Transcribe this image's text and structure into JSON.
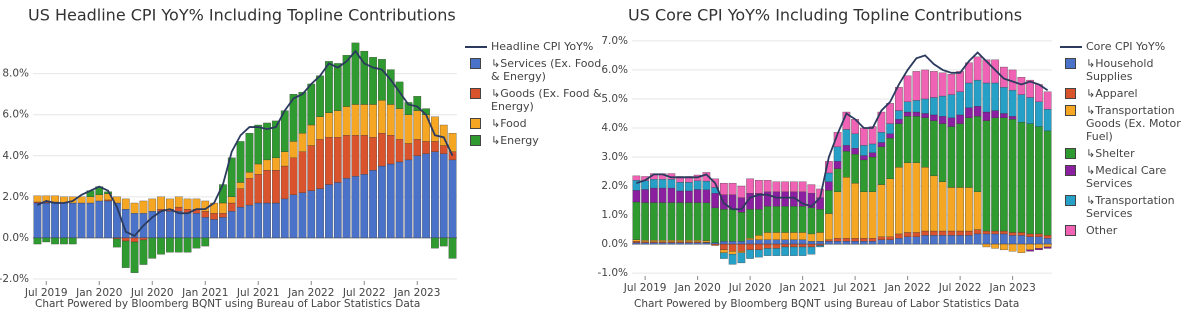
{
  "chart_data": [
    {
      "type": "bar",
      "stacked": true,
      "grid": true,
      "title": "US Headline CPI YoY% Including Topline Contributions",
      "note": "Chart Powered by Bloomberg BQNT using Bureau of Labor Statistics Data",
      "x": [
        "2019-06",
        "2019-07",
        "2019-08",
        "2019-09",
        "2019-10",
        "2019-11",
        "2019-12",
        "2020-01",
        "2020-02",
        "2020-03",
        "2020-04",
        "2020-05",
        "2020-06",
        "2020-07",
        "2020-08",
        "2020-09",
        "2020-10",
        "2020-11",
        "2020-12",
        "2021-01",
        "2021-02",
        "2021-03",
        "2021-04",
        "2021-05",
        "2021-06",
        "2021-07",
        "2021-08",
        "2021-09",
        "2021-10",
        "2021-11",
        "2021-12",
        "2022-01",
        "2022-02",
        "2022-03",
        "2022-04",
        "2022-05",
        "2022-06",
        "2022-07",
        "2022-08",
        "2022-09",
        "2022-10",
        "2022-11",
        "2022-12",
        "2023-01",
        "2023-02",
        "2023-03",
        "2023-04",
        "2023-05"
      ],
      "xticks": [
        {
          "value": "2019-07",
          "label": "Jul 2019"
        },
        {
          "value": "2020-01",
          "label": "Jan 2020"
        },
        {
          "value": "2020-07",
          "label": "Jul 2020"
        },
        {
          "value": "2021-01",
          "label": "Jan 2021"
        },
        {
          "value": "2021-07",
          "label": "Jul 2021"
        },
        {
          "value": "2022-01",
          "label": "Jan 2022"
        },
        {
          "value": "2022-07",
          "label": "Jul 2022"
        },
        {
          "value": "2023-01",
          "label": "Jan 2023"
        }
      ],
      "ylim": [
        -2.1,
        9.3
      ],
      "yticks": [
        {
          "value": -2,
          "label": "-2.0%"
        },
        {
          "value": 0,
          "label": "0.0%"
        },
        {
          "value": 2,
          "label": "2.0%"
        },
        {
          "value": 4,
          "label": "4.0%"
        },
        {
          "value": 6,
          "label": "6.0%"
        },
        {
          "value": 8,
          "label": "8.0%"
        }
      ],
      "series": [
        {
          "name": "Headline CPI YoY%",
          "type": "line",
          "color": "#2b3a5e",
          "values": [
            1.6,
            1.8,
            1.7,
            1.7,
            1.8,
            2.1,
            2.3,
            2.5,
            2.3,
            1.5,
            0.3,
            0.1,
            0.6,
            1.0,
            1.3,
            1.4,
            1.2,
            1.2,
            1.4,
            1.4,
            1.7,
            2.6,
            4.2,
            5.0,
            5.4,
            5.4,
            5.3,
            5.4,
            6.2,
            6.8,
            7.0,
            7.5,
            7.9,
            8.5,
            8.3,
            8.6,
            9.1,
            8.5,
            8.3,
            8.2,
            7.7,
            7.1,
            6.5,
            6.4,
            6.0,
            5.0,
            4.9,
            4.0
          ]
        },
        {
          "name": "↳Services (Ex. Food & Energy)",
          "color": "#4a72c8",
          "values": [
            1.7,
            1.7,
            1.7,
            1.7,
            1.7,
            1.7,
            1.7,
            1.8,
            1.8,
            1.7,
            1.4,
            1.2,
            1.2,
            1.3,
            1.3,
            1.3,
            1.3,
            1.2,
            1.2,
            1.0,
            0.9,
            1.0,
            1.3,
            1.5,
            1.6,
            1.7,
            1.7,
            1.7,
            1.9,
            2.1,
            2.2,
            2.3,
            2.4,
            2.6,
            2.7,
            2.9,
            3.0,
            3.1,
            3.3,
            3.5,
            3.6,
            3.7,
            3.8,
            4.0,
            4.1,
            4.2,
            4.1,
            3.8
          ]
        },
        {
          "name": "↳Goods (Ex. Food & Energy)",
          "color": "#d9532c",
          "values": [
            0.05,
            0.05,
            0.05,
            0.0,
            0.0,
            0.0,
            0.0,
            0.0,
            0.05,
            -0.05,
            -0.15,
            -0.2,
            -0.1,
            0.0,
            0.1,
            0.1,
            0.2,
            0.2,
            0.2,
            0.3,
            0.3,
            0.2,
            0.4,
            0.9,
            1.3,
            1.4,
            1.6,
            1.6,
            1.6,
            1.8,
            2.0,
            2.2,
            2.4,
            2.3,
            2.2,
            2.1,
            2.0,
            1.9,
            1.6,
            1.6,
            1.4,
            1.1,
            0.8,
            0.8,
            0.6,
            0.5,
            0.4,
            0.4
          ]
        },
        {
          "name": "↳Food",
          "color": "#f5a623",
          "values": [
            0.3,
            0.3,
            0.3,
            0.3,
            0.3,
            0.3,
            0.3,
            0.3,
            0.3,
            0.3,
            0.5,
            0.5,
            0.6,
            0.6,
            0.6,
            0.5,
            0.5,
            0.5,
            0.5,
            0.5,
            0.5,
            0.5,
            0.3,
            0.3,
            0.3,
            0.5,
            0.5,
            0.6,
            0.7,
            0.8,
            0.9,
            1.0,
            1.1,
            1.2,
            1.3,
            1.4,
            1.5,
            1.5,
            1.6,
            1.6,
            1.5,
            1.5,
            1.4,
            1.4,
            1.3,
            1.2,
            1.0,
            0.9
          ]
        },
        {
          "name": "↳Energy",
          "color": "#2f9a2f",
          "values": [
            -0.3,
            -0.2,
            -0.3,
            -0.3,
            -0.3,
            0.0,
            0.3,
            0.4,
            0.1,
            -0.4,
            -1.3,
            -1.5,
            -1.2,
            -1.0,
            -0.8,
            -0.7,
            -0.7,
            -0.7,
            -0.5,
            -0.4,
            0.0,
            0.9,
            1.9,
            2.0,
            1.9,
            1.9,
            1.8,
            1.8,
            2.0,
            2.3,
            2.0,
            2.0,
            2.0,
            2.5,
            2.3,
            2.5,
            3.0,
            2.6,
            2.3,
            2.0,
            1.7,
            1.3,
            0.6,
            0.7,
            0.3,
            -0.5,
            -0.4,
            -1.0
          ]
        }
      ]
    },
    {
      "type": "bar",
      "stacked": true,
      "grid": true,
      "title": "US Core CPI YoY% Including Topline Contributions",
      "note": "Chart Powered by Bloomberg BQNT using Bureau of Labor Statistics Data",
      "x": [
        "2019-06",
        "2019-07",
        "2019-08",
        "2019-09",
        "2019-10",
        "2019-11",
        "2019-12",
        "2020-01",
        "2020-02",
        "2020-03",
        "2020-04",
        "2020-05",
        "2020-06",
        "2020-07",
        "2020-08",
        "2020-09",
        "2020-10",
        "2020-11",
        "2020-12",
        "2021-01",
        "2021-02",
        "2021-03",
        "2021-04",
        "2021-05",
        "2021-06",
        "2021-07",
        "2021-08",
        "2021-09",
        "2021-10",
        "2021-11",
        "2021-12",
        "2022-01",
        "2022-02",
        "2022-03",
        "2022-04",
        "2022-05",
        "2022-06",
        "2022-07",
        "2022-08",
        "2022-09",
        "2022-10",
        "2022-11",
        "2022-12",
        "2023-01",
        "2023-02",
        "2023-03",
        "2023-04",
        "2023-05"
      ],
      "xticks": [
        {
          "value": "2019-07",
          "label": "Jul 2019"
        },
        {
          "value": "2020-01",
          "label": "Jan 2020"
        },
        {
          "value": "2020-07",
          "label": "Jul 2020"
        },
        {
          "value": "2021-01",
          "label": "Jan 2021"
        },
        {
          "value": "2021-07",
          "label": "Jul 2021"
        },
        {
          "value": "2022-01",
          "label": "Jan 2022"
        },
        {
          "value": "2022-07",
          "label": "Jul 2022"
        },
        {
          "value": "2023-01",
          "label": "Jan 2023"
        }
      ],
      "ylim": [
        -1.1,
        7.1
      ],
      "yticks": [
        {
          "value": -1,
          "label": "-1.0%"
        },
        {
          "value": 0,
          "label": "0.0%"
        },
        {
          "value": 1,
          "label": "1.0%"
        },
        {
          "value": 2,
          "label": "2.0%"
        },
        {
          "value": 3,
          "label": "3.0%"
        },
        {
          "value": 4,
          "label": "4.0%"
        },
        {
          "value": 5,
          "label": "5.0%"
        },
        {
          "value": 6,
          "label": "6.0%"
        },
        {
          "value": 7,
          "label": "7.0%"
        }
      ],
      "series": [
        {
          "name": "Core CPI YoY%",
          "type": "line",
          "color": "#2b3a5e",
          "values": [
            2.1,
            2.2,
            2.4,
            2.4,
            2.3,
            2.3,
            2.3,
            2.3,
            2.4,
            2.1,
            1.4,
            1.2,
            1.2,
            1.6,
            1.7,
            1.7,
            1.6,
            1.6,
            1.6,
            1.4,
            1.3,
            1.6,
            3.0,
            3.8,
            4.5,
            4.3,
            4.0,
            4.0,
            4.6,
            4.9,
            5.5,
            6.0,
            6.4,
            6.5,
            6.2,
            6.0,
            5.9,
            5.9,
            6.3,
            6.6,
            6.3,
            6.0,
            5.7,
            5.6,
            5.5,
            5.6,
            5.5,
            5.3
          ]
        },
        {
          "name": "↳Household Supplies",
          "color": "#4a72c8",
          "values": [
            0.05,
            0.05,
            0.05,
            0.05,
            0.05,
            0.05,
            0.05,
            0.05,
            0.05,
            0.05,
            0.1,
            0.1,
            0.1,
            0.15,
            0.15,
            0.15,
            0.15,
            0.15,
            0.15,
            0.15,
            0.1,
            0.1,
            0.1,
            0.1,
            0.1,
            0.1,
            0.1,
            0.1,
            0.15,
            0.15,
            0.2,
            0.25,
            0.25,
            0.3,
            0.3,
            0.3,
            0.3,
            0.3,
            0.3,
            0.35,
            0.35,
            0.35,
            0.35,
            0.3,
            0.3,
            0.25,
            0.25,
            0.2
          ]
        },
        {
          "name": "↳Apparel",
          "color": "#d9532c",
          "values": [
            0.05,
            0.03,
            0.03,
            0.03,
            0.03,
            0.03,
            0.03,
            0.03,
            0.02,
            -0.05,
            -0.2,
            -0.25,
            -0.25,
            -0.2,
            -0.2,
            -0.15,
            -0.15,
            -0.1,
            -0.1,
            -0.1,
            -0.1,
            -0.05,
            0.05,
            0.1,
            0.1,
            0.1,
            0.1,
            0.1,
            0.1,
            0.1,
            0.15,
            0.15,
            0.15,
            0.15,
            0.15,
            0.15,
            0.15,
            0.15,
            0.15,
            0.15,
            0.1,
            0.1,
            0.1,
            0.1,
            0.1,
            0.1,
            0.1,
            0.1
          ]
        },
        {
          "name": "↳Transportation Goods (Ex. Motor Fuel)",
          "color": "#f5a623",
          "values": [
            0.05,
            0.05,
            0.05,
            0.05,
            0.05,
            0.05,
            0.05,
            0.05,
            0.05,
            0.0,
            -0.1,
            -0.1,
            -0.05,
            0.05,
            0.15,
            0.25,
            0.25,
            0.25,
            0.25,
            0.25,
            0.25,
            0.3,
            0.9,
            1.6,
            2.1,
            1.9,
            1.6,
            1.6,
            1.8,
            2.0,
            2.3,
            2.4,
            2.4,
            2.2,
            1.9,
            1.7,
            1.5,
            1.5,
            1.5,
            1.3,
            -0.1,
            -0.15,
            -0.2,
            -0.25,
            -0.3,
            -0.2,
            -0.15,
            -0.1
          ]
        },
        {
          "name": "↳Shelter",
          "color": "#2f9a2f",
          "values": [
            1.3,
            1.3,
            1.3,
            1.3,
            1.3,
            1.3,
            1.3,
            1.3,
            1.3,
            1.2,
            1.1,
            1.1,
            1.0,
            1.0,
            0.9,
            0.9,
            0.9,
            0.9,
            0.9,
            0.9,
            0.9,
            0.8,
            0.8,
            0.8,
            0.9,
            1.0,
            1.1,
            1.2,
            1.3,
            1.4,
            1.5,
            1.6,
            1.6,
            1.7,
            1.9,
            2.0,
            2.1,
            2.2,
            2.4,
            2.6,
            3.8,
            3.9,
            3.9,
            3.9,
            3.8,
            3.8,
            3.7,
            3.6
          ]
        },
        {
          "name": "↳Medical Care Services",
          "color": "#8a1fa0",
          "values": [
            0.4,
            0.45,
            0.5,
            0.5,
            0.5,
            0.4,
            0.4,
            0.45,
            0.45,
            0.5,
            0.5,
            0.5,
            0.5,
            0.55,
            0.55,
            0.5,
            0.5,
            0.5,
            0.5,
            0.5,
            0.5,
            0.4,
            0.3,
            0.25,
            0.2,
            0.2,
            0.15,
            0.15,
            0.15,
            0.15,
            0.15,
            0.15,
            0.15,
            0.15,
            0.2,
            0.25,
            0.3,
            0.3,
            0.35,
            0.35,
            0.3,
            0.25,
            0.15,
            0.1,
            0.0,
            -0.05,
            -0.05,
            -0.05
          ]
        },
        {
          "name": "↳Transportation Services",
          "color": "#27a0c8",
          "values": [
            0.35,
            0.3,
            0.3,
            0.3,
            0.3,
            0.3,
            0.3,
            0.3,
            0.3,
            0.2,
            -0.2,
            -0.35,
            -0.35,
            -0.3,
            -0.25,
            -0.25,
            -0.25,
            -0.3,
            -0.3,
            -0.3,
            -0.25,
            -0.05,
            0.3,
            0.5,
            0.55,
            0.5,
            0.35,
            0.3,
            0.35,
            0.35,
            0.3,
            0.35,
            0.4,
            0.5,
            0.6,
            0.7,
            0.8,
            0.8,
            0.85,
            0.9,
            1.0,
            0.95,
            0.9,
            0.9,
            0.95,
            0.9,
            0.85,
            0.75
          ]
        },
        {
          "name": "Other",
          "color": "#f062b4",
          "values": [
            0.15,
            0.15,
            0.2,
            0.2,
            0.2,
            0.2,
            0.2,
            0.2,
            0.3,
            0.3,
            0.4,
            0.4,
            0.4,
            0.5,
            0.45,
            0.4,
            0.35,
            0.35,
            0.35,
            0.35,
            0.3,
            0.3,
            0.4,
            0.5,
            0.6,
            0.5,
            0.6,
            0.6,
            0.7,
            0.7,
            0.8,
            0.9,
            1.0,
            1.0,
            0.9,
            0.8,
            0.7,
            0.7,
            0.7,
            0.8,
            0.8,
            0.8,
            0.7,
            0.7,
            0.6,
            0.6,
            0.6,
            0.6
          ]
        }
      ]
    }
  ]
}
